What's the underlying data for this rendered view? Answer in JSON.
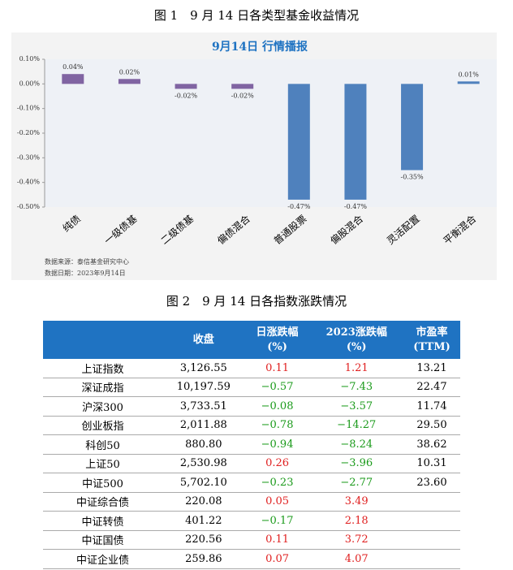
{
  "figure1_caption": "图 1　9 月 14 日各类型基金收益情况",
  "chart_data": {
    "type": "bar",
    "title": "9月14日  行情播报",
    "categories": [
      "纯债",
      "一级债基",
      "二级债基",
      "偏债混合",
      "普通股票",
      "偏股混合",
      "灵活配置",
      "平衡混合"
    ],
    "values": [
      0.04,
      0.02,
      -0.02,
      -0.02,
      -0.47,
      -0.47,
      -0.35,
      0.01
    ],
    "value_labels": [
      "0.04%",
      "0.02%",
      "-0.02%",
      "-0.02%",
      "-0.47%",
      "-0.47%",
      "-0.35%",
      "0.01%"
    ],
    "colors": [
      "#8064a2",
      "#8064a2",
      "#8064a2",
      "#8064a2",
      "#4f81bd",
      "#4f81bd",
      "#4f81bd",
      "#4f81bd"
    ],
    "ylim": [
      -0.5,
      0.1
    ],
    "yticks": [
      {
        "value": 0.1,
        "label": "0.10%"
      },
      {
        "value": 0,
        "label": "0.00%"
      },
      {
        "value": -0.1,
        "label": "-0.10%"
      },
      {
        "value": -0.2,
        "label": "-0.20%"
      },
      {
        "value": -0.3,
        "label": "-0.30%"
      },
      {
        "value": -0.4,
        "label": "-0.40%"
      },
      {
        "value": -0.5,
        "label": "-0.50%"
      }
    ],
    "source": "数据来源：泰信基金研究中心",
    "date": "数据日期：2023年9月14日"
  },
  "figure2_caption": "图 2　9 月 14 日各指数涨跌情况",
  "table": {
    "header": [
      [
        "收盘"
      ],
      [
        "日涨跌幅",
        "(%)"
      ],
      [
        "2023涨跌幅",
        "(%)"
      ],
      [
        "市盈率",
        "(TTM)"
      ]
    ],
    "rows": [
      [
        "上证指数",
        "3,126.55",
        "0.11",
        "1.21",
        "13.21"
      ],
      [
        "深证成指",
        "10,197.59",
        "−0.57",
        "−7.43",
        "22.47"
      ],
      [
        "沪深300",
        "3,733.51",
        "−0.08",
        "−3.57",
        "11.74"
      ],
      [
        "创业板指",
        "2,011.88",
        "−0.78",
        "−14.27",
        "29.50"
      ],
      [
        "科创50",
        "880.80",
        "−0.94",
        "−8.24",
        "38.62"
      ],
      [
        "上证50",
        "2,530.98",
        "0.26",
        "−3.96",
        "10.31"
      ],
      [
        "中证500",
        "5,702.10",
        "−0.23",
        "−2.77",
        "23.60"
      ],
      [
        "中证综合债",
        "220.08",
        "0.05",
        "3.49"
      ],
      [
        "中证转债",
        "401.22",
        "−0.17",
        "2.18"
      ],
      [
        "中证国债",
        "220.56",
        "0.11",
        "3.72"
      ],
      [
        "中证企业债",
        "259.86",
        "0.07",
        "4.07"
      ]
    ]
  }
}
